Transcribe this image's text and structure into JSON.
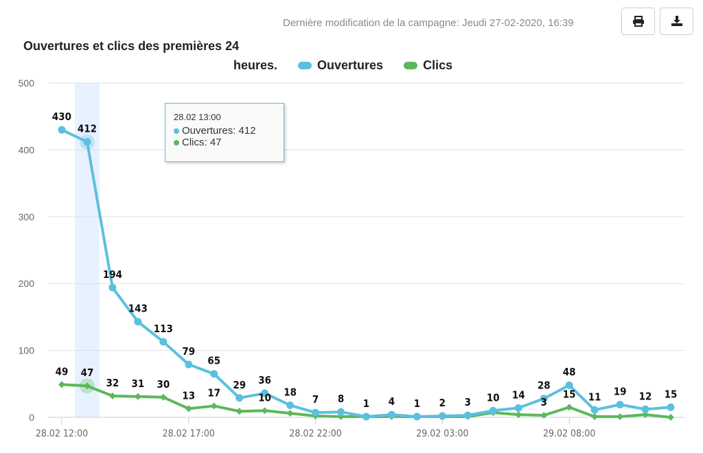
{
  "header": {
    "last_modified": "Dernière modification de la campagne:  Jeudi 27-02-2020, 16:39",
    "print_icon": "print-icon",
    "download_icon": "download-icon"
  },
  "chart_data": {
    "type": "line",
    "title": "Ouvertures et clics des premières 24",
    "title_line2": "heures.",
    "legend_placement": "top",
    "x": [
      "28.02 12:00",
      "28.02 13:00",
      "28.02 14:00",
      "28.02 15:00",
      "28.02 16:00",
      "28.02 17:00",
      "28.02 18:00",
      "28.02 19:00",
      "28.02 20:00",
      "28.02 21:00",
      "28.02 22:00",
      "28.02 23:00",
      "29.02 00:00",
      "29.02 01:00",
      "29.02 02:00",
      "29.02 03:00",
      "29.02 04:00",
      "29.02 05:00",
      "29.02 06:00",
      "29.02 07:00",
      "29.02 08:00",
      "29.02 09:00",
      "29.02 10:00",
      "29.02 11:00",
      "29.02 12:00"
    ],
    "x_tick_labels": [
      "28.02 12:00",
      "28.02 17:00",
      "28.02 22:00",
      "29.02 03:00",
      "29.02 08:00"
    ],
    "ylim": [
      0,
      500
    ],
    "y_ticks": [
      0,
      100,
      200,
      300,
      400,
      500
    ],
    "grid": true,
    "series": [
      {
        "name": "Ouvertures",
        "color": "#5bc0de",
        "values": [
          430,
          412,
          194,
          143,
          113,
          79,
          65,
          29,
          36,
          18,
          7,
          8,
          1,
          4,
          1,
          2,
          3,
          10,
          14,
          28,
          48,
          11,
          19,
          12,
          15
        ],
        "labels_shown": [
          true,
          true,
          true,
          true,
          true,
          true,
          true,
          true,
          true,
          true,
          true,
          true,
          true,
          true,
          true,
          true,
          true,
          true,
          true,
          true,
          true,
          true,
          true,
          true,
          true
        ]
      },
      {
        "name": "Clics",
        "color": "#5cb85c",
        "values": [
          49,
          47,
          32,
          31,
          30,
          13,
          17,
          9,
          10,
          6,
          2,
          1,
          1,
          1,
          1,
          1,
          1,
          7,
          4,
          3,
          15,
          1,
          1,
          4,
          0
        ],
        "labels_shown": [
          true,
          true,
          true,
          true,
          true,
          true,
          true,
          false,
          true,
          false,
          false,
          false,
          false,
          false,
          false,
          false,
          false,
          false,
          false,
          true,
          true,
          false,
          false,
          false,
          false
        ]
      }
    ],
    "tooltip": {
      "date": "28.02 13:00",
      "lines": [
        "Ouvertures: 412",
        "Clics: 47"
      ],
      "index": 1
    }
  }
}
